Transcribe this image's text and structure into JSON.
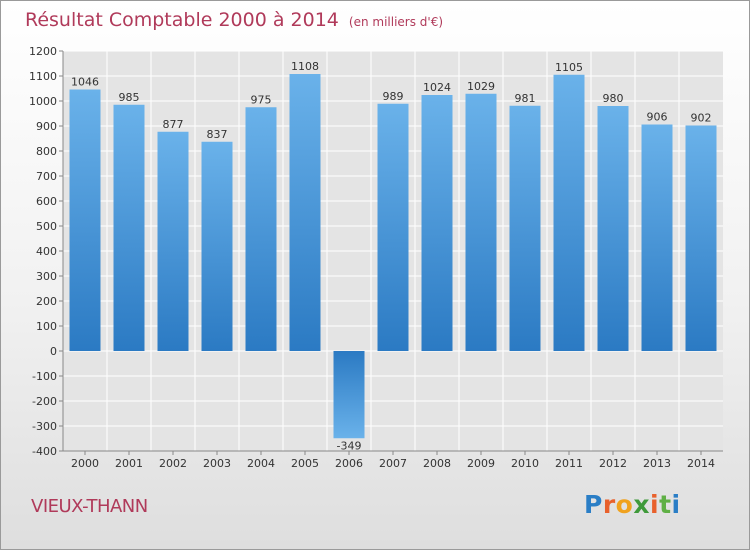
{
  "header": {
    "title": "Résultat Comptable 2000 à 2014",
    "subtitle": "(en milliers d'€)"
  },
  "footer": {
    "town": "VIEUX-THANN",
    "logo_text": "Proxiti"
  },
  "colors": {
    "title": "#b03a5a",
    "bar_light": "#6ab2ea",
    "bar_dark": "#2b7ac3",
    "plot_bg": "#e4e4e4"
  },
  "chart_data": {
    "type": "bar",
    "title": "Résultat Comptable 2000 à 2014",
    "subtitle": "(en milliers d'€)",
    "xlabel": "",
    "ylabel": "",
    "categories": [
      "2000",
      "2001",
      "2002",
      "2003",
      "2004",
      "2005",
      "2006",
      "2007",
      "2008",
      "2009",
      "2010",
      "2011",
      "2012",
      "2013",
      "2014"
    ],
    "values": [
      1046,
      985,
      877,
      837,
      975,
      1108,
      -349,
      989,
      1024,
      1029,
      981,
      1105,
      980,
      906,
      902
    ],
    "value_labels": [
      "1046",
      "985",
      "877",
      "837",
      "975",
      "1108",
      "-349",
      "989",
      "1024",
      "1029",
      "981",
      "1105",
      "980",
      "906",
      "902"
    ],
    "ylim": [
      -400,
      1200
    ],
    "yticks": [
      -400,
      -300,
      -200,
      -100,
      0,
      100,
      200,
      300,
      400,
      500,
      600,
      700,
      800,
      900,
      1000,
      1100,
      1200
    ],
    "ytick_labels": [
      "-400",
      "-300",
      "-200",
      "-100",
      "0",
      "100",
      "200",
      "300",
      "400",
      "500",
      "600",
      "700",
      "800",
      "900",
      "1000",
      "1100",
      "1200"
    ],
    "grid": true,
    "legend": "none"
  }
}
